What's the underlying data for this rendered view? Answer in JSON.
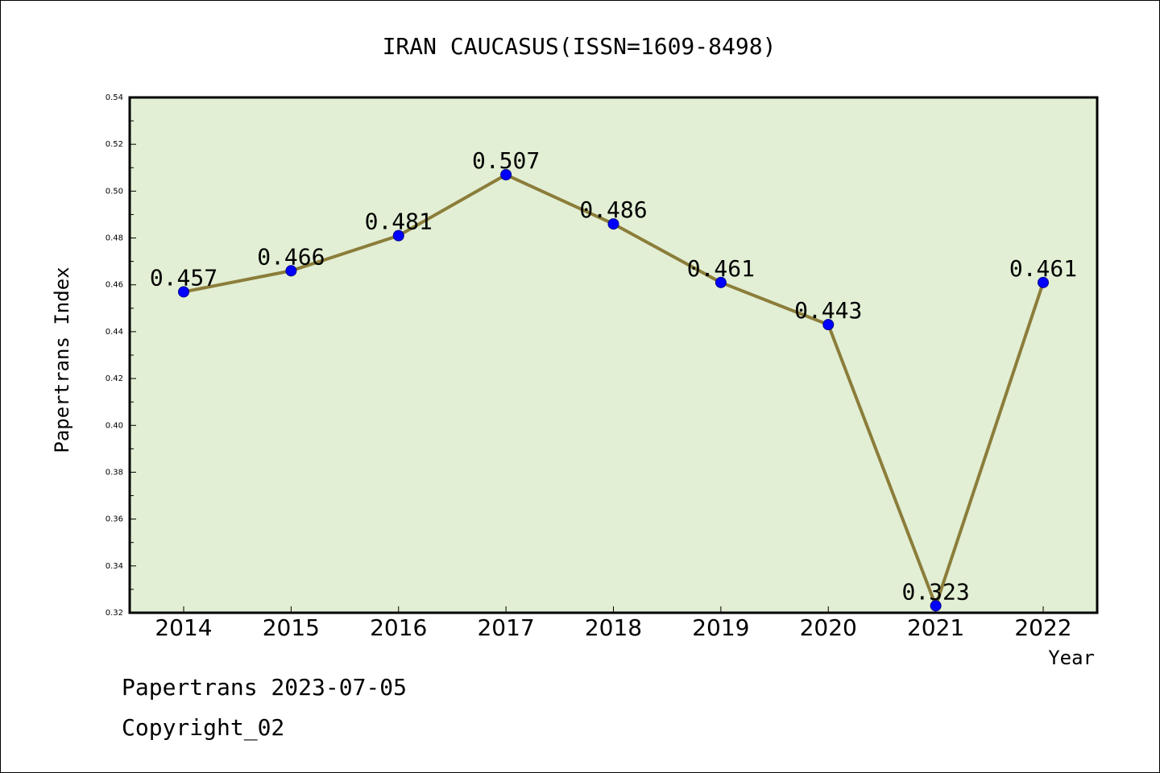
{
  "chart_data": {
    "type": "line",
    "title": "IRAN CAUCASUS(ISSN=1609-8498)",
    "xlabel": "Year",
    "ylabel": "Papertrans Index",
    "ylim": [
      0.32,
      0.54
    ],
    "yticks": [
      "0.32",
      "0.34",
      "0.36",
      "0.38",
      "0.40",
      "0.42",
      "0.44",
      "0.46",
      "0.48",
      "0.50",
      "0.52",
      "0.54"
    ],
    "categories": [
      "2014",
      "2015",
      "2016",
      "2017",
      "2018",
      "2019",
      "2020",
      "2021",
      "2022"
    ],
    "series": [
      {
        "values": [
          0.457,
          0.466,
          0.481,
          0.507,
          0.486,
          0.461,
          0.443,
          0.323,
          0.461
        ],
        "labels": [
          "0.457",
          "0.466",
          "0.481",
          "0.507",
          "0.486",
          "0.461",
          "0.443",
          "0.323",
          "0.461"
        ]
      }
    ],
    "grid": false,
    "colors": {
      "plot_bg": "#e2efd4",
      "line": "#8b7d3a",
      "marker": "#0000ff"
    }
  },
  "footer": {
    "line1": "Papertrans 2023-07-05",
    "line2": "Copyright_02"
  }
}
